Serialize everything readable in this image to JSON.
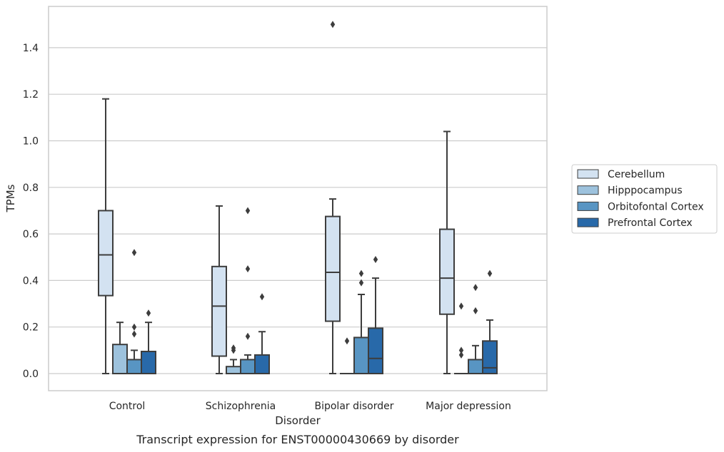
{
  "chart_data": {
    "type": "box",
    "title": "",
    "caption": "Transcript expression for ENST00000430669 by disorder",
    "xlabel": "Disorder",
    "ylabel": "TPMs",
    "ylim": [
      -0.07,
      1.58
    ],
    "yticks": [
      0.0,
      0.2,
      0.4,
      0.6,
      0.8,
      1.0,
      1.2,
      1.4
    ],
    "ytick_labels": [
      "0.0",
      "0.2",
      "0.4",
      "0.6",
      "0.8",
      "1.0",
      "1.2",
      "1.4"
    ],
    "grid": "horizontal",
    "legend_position": "right",
    "categories": [
      "Control",
      "Schizophrenia",
      "Bipolar disorder",
      "Major depression"
    ],
    "series": [
      {
        "name": "Cerebellum",
        "color": "#d3e2f1",
        "boxes": [
          {
            "whisker_low": 0.0,
            "q1": 0.335,
            "median": 0.51,
            "q3": 0.7,
            "whisker_high": 1.18,
            "outliers": []
          },
          {
            "whisker_low": 0.0,
            "q1": 0.075,
            "median": 0.29,
            "q3": 0.46,
            "whisker_high": 0.72,
            "outliers": []
          },
          {
            "whisker_low": 0.0,
            "q1": 0.225,
            "median": 0.435,
            "q3": 0.675,
            "whisker_high": 0.75,
            "outliers": [
              1.5
            ]
          },
          {
            "whisker_low": 0.0,
            "q1": 0.255,
            "median": 0.41,
            "q3": 0.62,
            "whisker_high": 1.04,
            "outliers": []
          }
        ]
      },
      {
        "name": "Hipppocampus",
        "color": "#9dc2dd",
        "boxes": [
          {
            "whisker_low": 0.0,
            "q1": 0.0,
            "median": 0.0,
            "q3": 0.125,
            "whisker_high": 0.22,
            "outliers": []
          },
          {
            "whisker_low": 0.0,
            "q1": 0.0,
            "median": 0.0,
            "q3": 0.03,
            "whisker_high": 0.06,
            "outliers": [
              0.1,
              0.11
            ]
          },
          {
            "whisker_low": 0.0,
            "q1": 0.0,
            "median": 0.0,
            "q3": 0.0,
            "whisker_high": 0.0,
            "outliers": [
              0.14
            ]
          },
          {
            "whisker_low": 0.0,
            "q1": 0.0,
            "median": 0.0,
            "q3": 0.0,
            "whisker_high": 0.0,
            "outliers": [
              0.08,
              0.1,
              0.29
            ]
          }
        ]
      },
      {
        "name": "Orbitofontal Cortex",
        "color": "#5895c3",
        "boxes": [
          {
            "whisker_low": 0.0,
            "q1": 0.0,
            "median": 0.0,
            "q3": 0.06,
            "whisker_high": 0.1,
            "outliers": [
              0.17,
              0.2,
              0.52
            ]
          },
          {
            "whisker_low": 0.0,
            "q1": 0.0,
            "median": 0.0,
            "q3": 0.06,
            "whisker_high": 0.08,
            "outliers": [
              0.16,
              0.45,
              0.7
            ]
          },
          {
            "whisker_low": 0.0,
            "q1": 0.0,
            "median": 0.0,
            "q3": 0.155,
            "whisker_high": 0.34,
            "outliers": [
              0.39,
              0.43
            ]
          },
          {
            "whisker_low": 0.0,
            "q1": 0.0,
            "median": 0.0,
            "q3": 0.06,
            "whisker_high": 0.12,
            "outliers": [
              0.27,
              0.37
            ]
          }
        ]
      },
      {
        "name": "Prefrontal Cortex",
        "color": "#2869a9",
        "boxes": [
          {
            "whisker_low": 0.0,
            "q1": 0.0,
            "median": 0.0,
            "q3": 0.095,
            "whisker_high": 0.22,
            "outliers": [
              0.26
            ]
          },
          {
            "whisker_low": 0.0,
            "q1": 0.0,
            "median": 0.0,
            "q3": 0.08,
            "whisker_high": 0.18,
            "outliers": [
              0.33
            ]
          },
          {
            "whisker_low": 0.0,
            "q1": 0.0,
            "median": 0.065,
            "q3": 0.195,
            "whisker_high": 0.41,
            "outliers": [
              0.49
            ]
          },
          {
            "whisker_low": 0.0,
            "q1": 0.0,
            "median": 0.025,
            "q3": 0.14,
            "whisker_high": 0.23,
            "outliers": [
              0.43
            ]
          }
        ]
      }
    ]
  }
}
